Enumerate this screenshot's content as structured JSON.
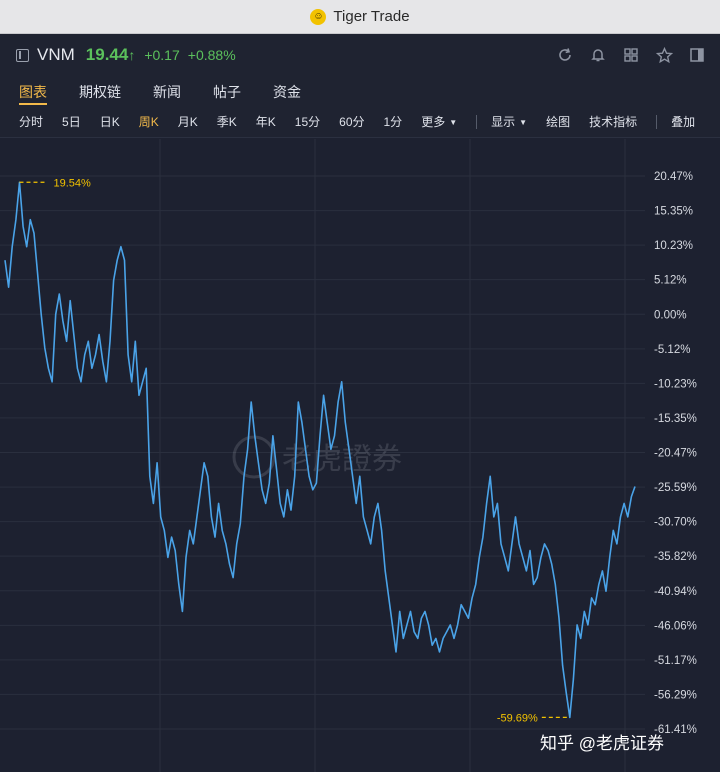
{
  "window": {
    "title": "Tiger Trade"
  },
  "quote": {
    "symbol": "VNM",
    "price": "19.44",
    "arrow": "↑",
    "change": "+0.17",
    "change_pct": "+0.88%"
  },
  "tabs": [
    {
      "label": "图表",
      "active": true
    },
    {
      "label": "期权链",
      "active": false
    },
    {
      "label": "新闻",
      "active": false
    },
    {
      "label": "帖子",
      "active": false
    },
    {
      "label": "资金",
      "active": false
    }
  ],
  "periods": [
    "分时",
    "5日",
    "日K",
    "周K",
    "月K",
    "季K",
    "年K",
    "15分",
    "60分",
    "1分"
  ],
  "active_period": "周K",
  "more_label": "更多",
  "toolbar": {
    "display_label": "显示",
    "draw_label": "绘图",
    "indicators_label": "技术指标",
    "overlay_label": "叠加"
  },
  "watermark": {
    "chart_mark": "老虎證券",
    "site_mark": "知乎 @老虎证券"
  },
  "colors": {
    "line": "#4aa3e8",
    "marker": "#f2c200",
    "positive": "#5bc05c",
    "accent": "#f2b94a",
    "background": "#1d2130"
  },
  "chart_data": {
    "type": "line",
    "series": [
      {
        "name": "",
        "values": [
          8,
          4,
          10,
          14,
          19.54,
          13,
          10,
          14,
          12,
          6,
          0,
          -5,
          -8,
          -10,
          0,
          3,
          -1,
          -4,
          2,
          -3,
          -8,
          -10,
          -6,
          -4,
          -8,
          -6,
          -3,
          -7,
          -10,
          -4,
          5,
          8,
          10,
          8,
          -6,
          -10,
          -4,
          -12,
          -10,
          -8,
          -24,
          -28,
          -22,
          -30,
          -32,
          -36,
          -33,
          -35,
          -40,
          -44,
          -36,
          -32,
          -34,
          -30,
          -26,
          -22,
          -24,
          -30,
          -33,
          -28,
          -32,
          -34,
          -37,
          -39,
          -34,
          -31,
          -24,
          -20,
          -13,
          -18,
          -22,
          -26,
          -28,
          -25,
          -18,
          -23,
          -28,
          -30,
          -26,
          -29,
          -24,
          -13,
          -16,
          -20,
          -24,
          -26,
          -25,
          -18,
          -12,
          -16,
          -20,
          -18,
          -13,
          -10,
          -16,
          -20,
          -24,
          -28,
          -24,
          -30,
          -32,
          -34,
          -30,
          -28,
          -32,
          -38,
          -42,
          -46,
          -50,
          -44,
          -48,
          -46,
          -44,
          -47,
          -48,
          -45,
          -44,
          -46,
          -49,
          -48,
          -50,
          -48,
          -47,
          -46,
          -48,
          -46,
          -43,
          -44,
          -45,
          -42,
          -40,
          -36,
          -33,
          -28,
          -24,
          -30,
          -28,
          -34,
          -36,
          -38,
          -34,
          -30,
          -34,
          -36,
          -38,
          -35,
          -40,
          -39,
          -36,
          -34,
          -35,
          -37,
          -40,
          -45,
          -52,
          -56,
          -59.69,
          -54,
          -46,
          -48,
          -44,
          -46,
          -42,
          -43,
          -40,
          -38,
          -41,
          -36,
          -32,
          -34,
          -30,
          -28,
          -30,
          -27,
          -25.5
        ]
      }
    ],
    "markers": [
      {
        "label": "19.54%",
        "value": 19.54
      },
      {
        "label": "-59.69%",
        "value": -59.69
      }
    ],
    "ylim": [
      -61.41,
      20.47
    ],
    "y_ticks": [
      "20.47%",
      "15.35%",
      "10.23%",
      "5.12%",
      "0.00%",
      "-5.12%",
      "-10.23%",
      "-15.35%",
      "-20.47%",
      "-25.59%",
      "-30.70%",
      "-35.82%",
      "-40.94%",
      "-46.06%",
      "-51.17%",
      "-56.29%",
      "-61.41%"
    ],
    "y_tick_values": [
      20.47,
      15.35,
      10.23,
      5.12,
      0,
      -5.12,
      -10.23,
      -15.35,
      -20.47,
      -25.59,
      -30.7,
      -35.82,
      -40.94,
      -46.06,
      -51.17,
      -56.29,
      -61.41
    ],
    "grid": true,
    "title": "",
    "xlabel": "",
    "ylabel": ""
  }
}
